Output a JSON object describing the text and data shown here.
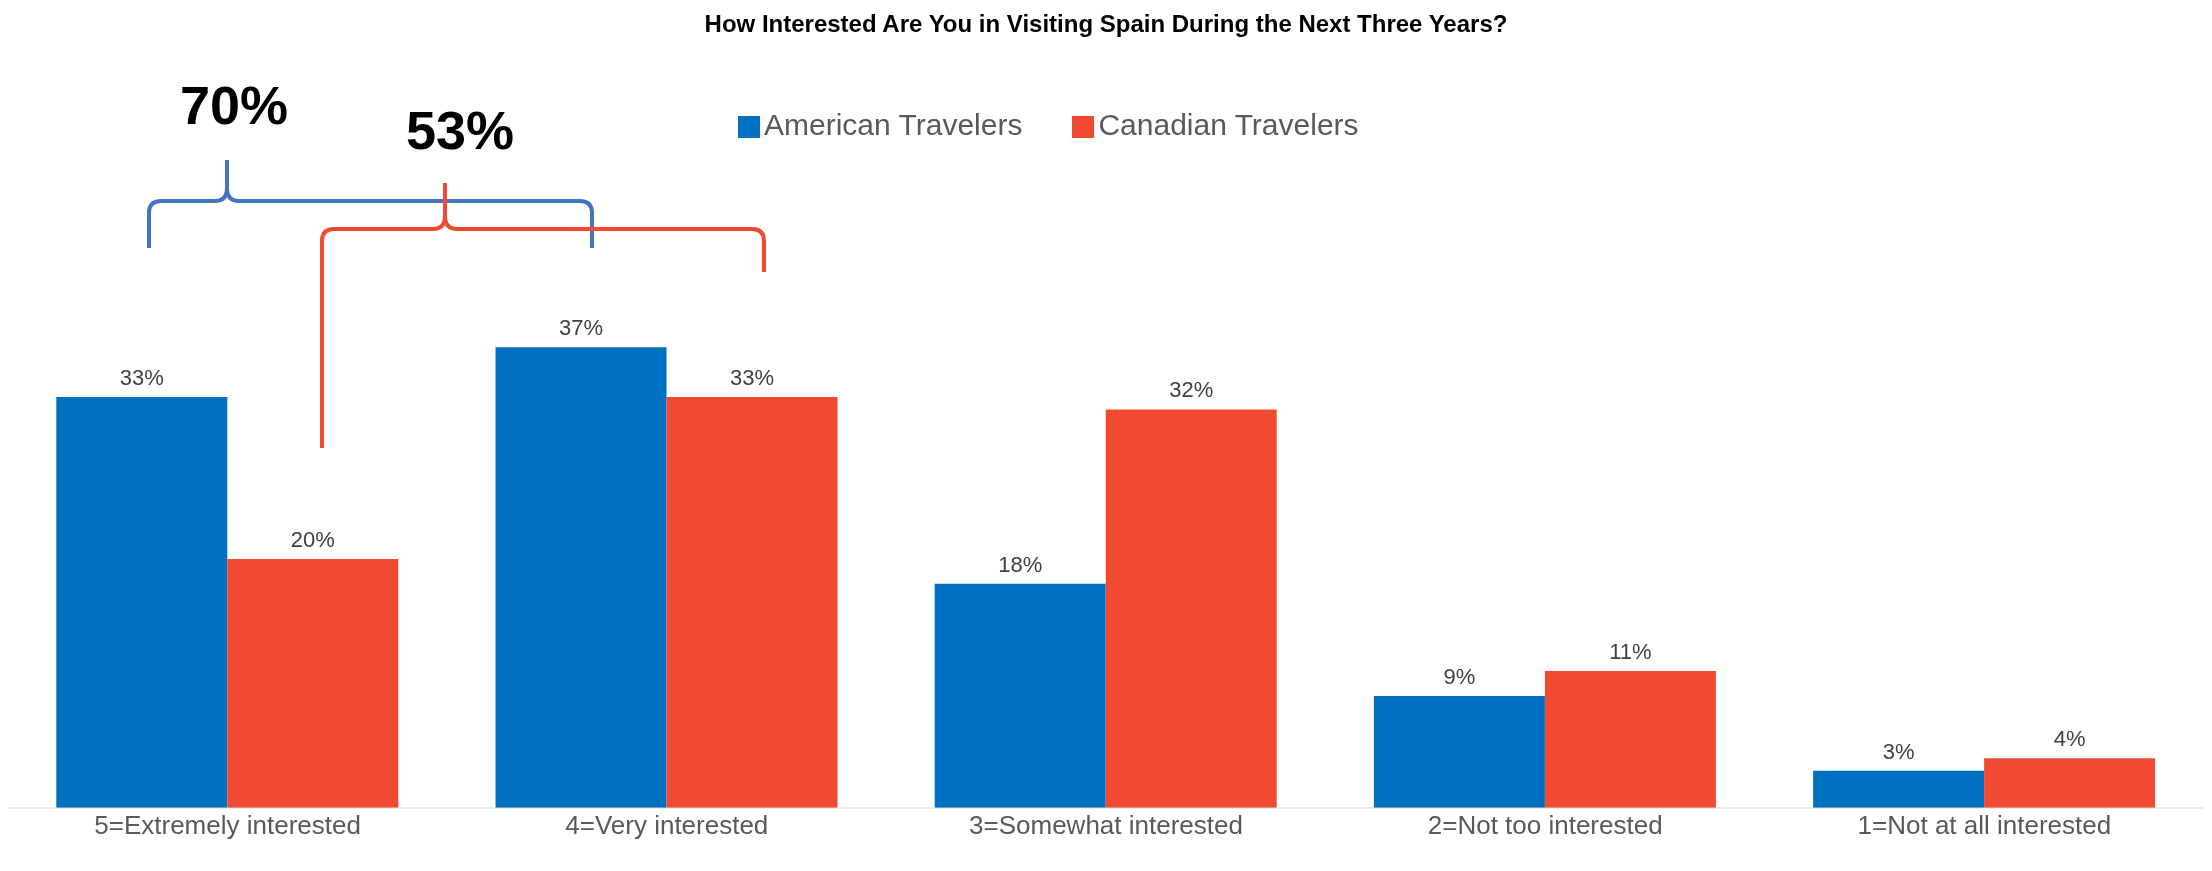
{
  "chart_data": {
    "type": "bar",
    "title": "How Interested Are You in Visiting Spain During the Next Three Years?",
    "categories": [
      "5=Extremely interested",
      "4=Very interested",
      "3=Somewhat interested",
      "2=Not too interested",
      "1=Not at all interested"
    ],
    "series": [
      {
        "name": "American Travelers",
        "color": "#0070c0",
        "values": [
          33,
          37,
          18,
          9,
          3
        ],
        "value_labels": [
          "33%",
          "37%",
          "18%",
          "9%",
          "3%"
        ]
      },
      {
        "name": "Canadian Travelers",
        "color": "#f04b30",
        "values": [
          20,
          33,
          32,
          11,
          4
        ],
        "value_labels": [
          "20%",
          "33%",
          "32%",
          "11%",
          "4%"
        ]
      }
    ],
    "annotations": [
      "70%",
      "53%"
    ],
    "legend": "top"
  }
}
